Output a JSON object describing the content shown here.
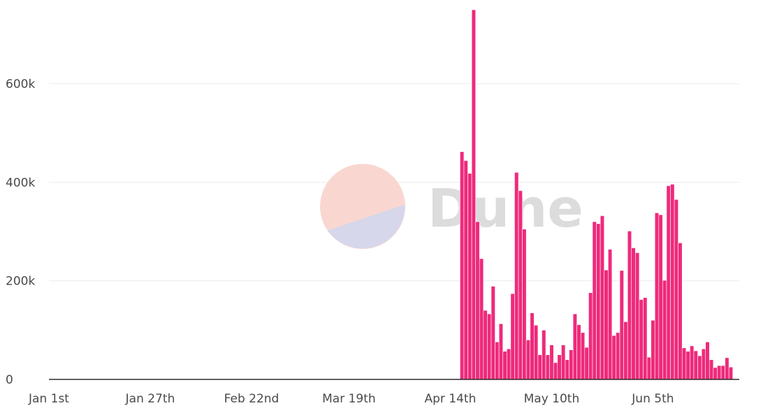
{
  "chart_data": {
    "type": "bar",
    "title": "",
    "xlabel": "",
    "ylabel": "",
    "ylim": [
      0,
      750000
    ],
    "grid": true,
    "y_ticks": [
      {
        "value": 0,
        "label": "0"
      },
      {
        "value": 200000,
        "label": "200k"
      },
      {
        "value": 400000,
        "label": "400k"
      },
      {
        "value": 600000,
        "label": "600k"
      }
    ],
    "x_ticks": [
      {
        "value": "Jan 1st",
        "label": "Jan 1st"
      },
      {
        "value": "Jan 27th",
        "label": "Jan 27th"
      },
      {
        "value": "Feb 22nd",
        "label": "Feb 22nd"
      },
      {
        "value": "Mar 19th",
        "label": "Mar 19th"
      },
      {
        "value": "Apr 14th",
        "label": "Apr 14th"
      },
      {
        "value": "May 10th",
        "label": "May 10th"
      },
      {
        "value": "Jun 5th",
        "label": "Jun 5th"
      }
    ],
    "x_dates": [
      "Apr 17",
      "Apr 18",
      "Apr 19",
      "Apr 20",
      "Apr 21",
      "Apr 22",
      "Apr 23",
      "Apr 24",
      "Apr 25",
      "Apr 26",
      "Apr 27",
      "Apr 28",
      "Apr 29",
      "Apr 30",
      "May 1",
      "May 2",
      "May 3",
      "May 4",
      "May 5",
      "May 6",
      "May 7",
      "May 8",
      "May 9",
      "May 10",
      "May 11",
      "May 12",
      "May 13",
      "May 14",
      "May 15",
      "May 16",
      "May 17",
      "May 18",
      "May 19",
      "May 20",
      "May 21",
      "May 22",
      "May 23",
      "May 24",
      "May 25",
      "May 26",
      "May 27",
      "May 28",
      "May 29",
      "May 30",
      "May 31",
      "Jun 1",
      "Jun 2",
      "Jun 3",
      "Jun 4",
      "Jun 5",
      "Jun 6",
      "Jun 7",
      "Jun 8",
      "Jun 9",
      "Jun 10",
      "Jun 11",
      "Jun 12",
      "Jun 13",
      "Jun 14",
      "Jun 15",
      "Jun 16",
      "Jun 17",
      "Jun 18",
      "Jun 19",
      "Jun 20",
      "Jun 21",
      "Jun 22",
      "Jun 23",
      "Jun 24",
      "Jun 25"
    ],
    "values": [
      462000,
      444000,
      418000,
      750000,
      320000,
      245000,
      140000,
      133000,
      189000,
      76000,
      113000,
      57000,
      62000,
      174000,
      420000,
      383000,
      305000,
      80000,
      135000,
      110000,
      50000,
      100000,
      50000,
      70000,
      34000,
      50000,
      70000,
      40000,
      60000,
      133000,
      111000,
      95000,
      65000,
      176000,
      320000,
      316000,
      332000,
      222000,
      264000,
      89000,
      95000,
      221000,
      117000,
      301000,
      267000,
      257000,
      162000,
      166000,
      45000,
      120000,
      338000,
      334000,
      201000,
      393000,
      396000,
      365000,
      277000,
      64000,
      57000,
      68000,
      58000,
      48000,
      62000,
      76000,
      40000,
      24000,
      28000,
      28000,
      44000,
      25000
    ],
    "series": [
      {
        "name": "",
        "color": "#ee2a7b"
      }
    ],
    "watermark": {
      "text": "Dune",
      "colors": [
        "#f9d7d0",
        "#d6d7ea"
      ]
    }
  }
}
